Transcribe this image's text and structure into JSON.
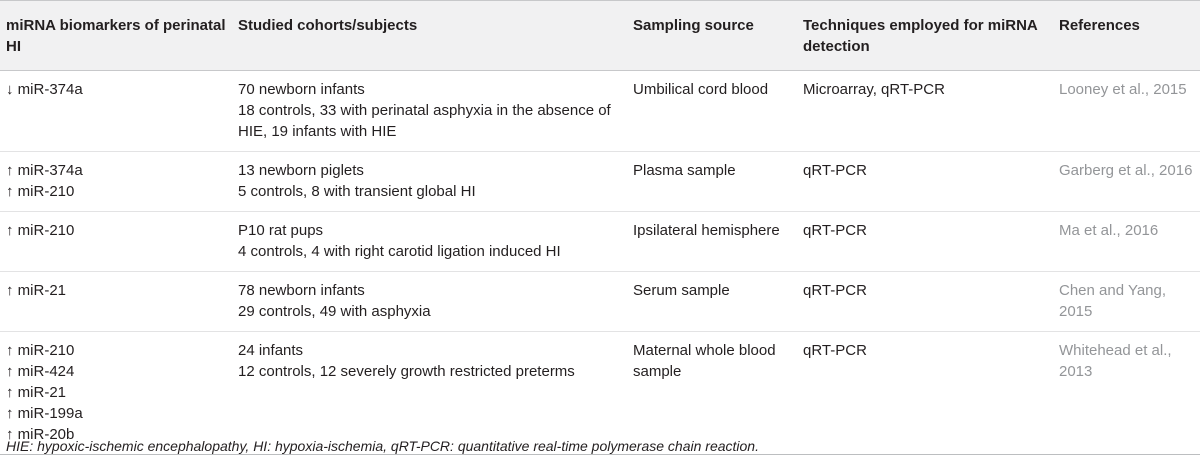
{
  "table": {
    "headers": [
      "miRNA biomarkers of perinatal HI",
      "Studied cohorts/subjects",
      "Sampling source",
      "Techniques employed for miRNA detection",
      "References"
    ],
    "rows": [
      {
        "biomarkers": [
          "↓ miR-374a"
        ],
        "cohort": [
          "70 newborn infants",
          "18 controls, 33 with perinatal asphyxia in the absence of HIE, 19 infants with HIE"
        ],
        "source": "Umbilical cord blood",
        "technique": "Microarray, qRT-PCR",
        "reference": "Looney et al., 2015"
      },
      {
        "biomarkers": [
          "↑ miR-374a",
          "↑ miR-210"
        ],
        "cohort": [
          "13 newborn piglets",
          "5 controls, 8 with transient global HI"
        ],
        "source": "Plasma sample",
        "technique": "qRT-PCR",
        "reference": "Garberg et al., 2016"
      },
      {
        "biomarkers": [
          "↑ miR-210"
        ],
        "cohort": [
          "P10 rat pups",
          "4 controls, 4 with right carotid ligation induced HI"
        ],
        "source": "Ipsilateral hemisphere",
        "technique": "qRT-PCR",
        "reference": "Ma et al., 2016"
      },
      {
        "biomarkers": [
          "↑ miR-21"
        ],
        "cohort": [
          "78 newborn infants",
          "29 controls, 49 with asphyxia"
        ],
        "source": "Serum sample",
        "technique": "qRT-PCR",
        "reference": "Chen and Yang, 2015"
      },
      {
        "biomarkers": [
          "↑ miR-210",
          "↑ miR-424",
          "↑ miR-21",
          "↑ miR-199a",
          "↑ miR-20b"
        ],
        "cohort": [
          "24 infants",
          "12 controls, 12 severely growth restricted preterms"
        ],
        "source": "Maternal whole blood sample",
        "technique": "qRT-PCR",
        "reference": "Whitehead et al., 2013"
      }
    ]
  },
  "footnote": "HIE: hypoxic-ischemic encephalopathy, HI: hypoxia-ischemia, qRT-PCR: quantitative real-time polymerase chain reaction."
}
